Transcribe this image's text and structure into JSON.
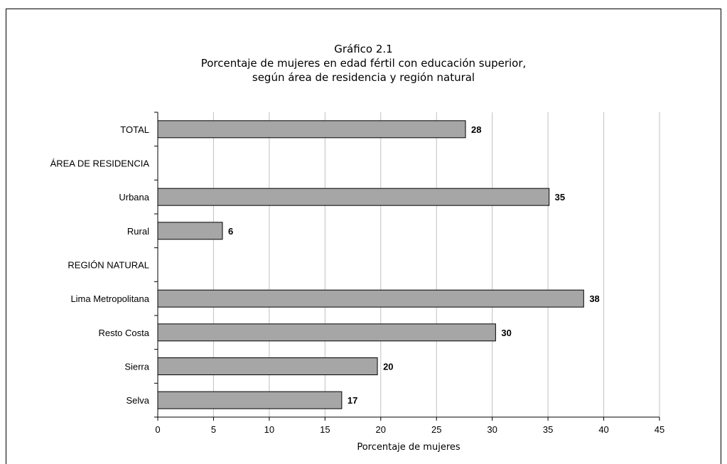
{
  "chart_data": {
    "type": "bar",
    "orientation": "horizontal",
    "title": "Gráfico 2.1",
    "subtitle": [
      "Porcentaje de mujeres en edad fértil con educación superior,",
      "según área de residencia y región natural"
    ],
    "xlabel": "Porcentaje de mujeres",
    "ylabel": "",
    "xlim": [
      0,
      45
    ],
    "xticks": [
      0,
      5,
      10,
      15,
      20,
      25,
      30,
      35,
      40,
      45
    ],
    "grid": true,
    "categories": [
      "TOTAL",
      "ÁREA DE RESIDENCIA",
      "Urbana",
      "Rural",
      "REGIÓN NATURAL",
      "Lima Metropolitana",
      "Resto Costa",
      "Sierra",
      "Selva"
    ],
    "values": [
      27.6,
      null,
      35.1,
      5.8,
      null,
      38.2,
      30.3,
      19.7,
      16.5
    ],
    "labels": [
      "28",
      "",
      "35",
      "6",
      "",
      "38",
      "30",
      "20",
      "17"
    ],
    "bar_color": "#a6a6a6"
  }
}
